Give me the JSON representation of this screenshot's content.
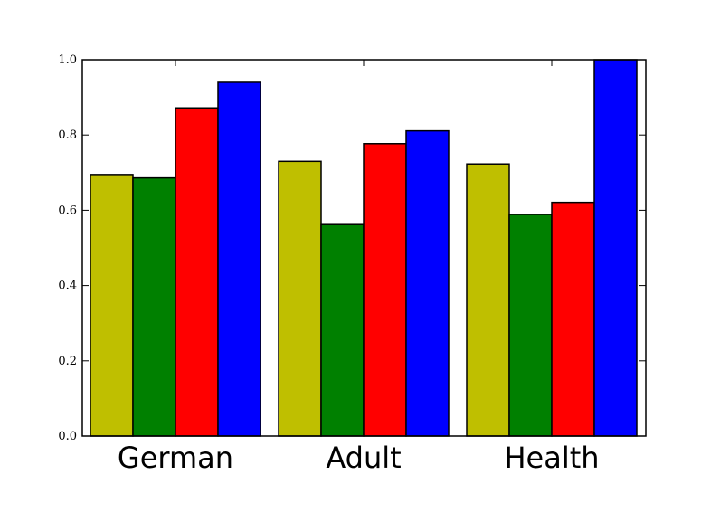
{
  "chart_data": {
    "type": "bar",
    "categories": [
      "German",
      "Adult",
      "Health"
    ],
    "series": [
      {
        "values": [
          0.695,
          0.73,
          0.723
        ],
        "color": "#bfbf00"
      },
      {
        "values": [
          0.686,
          0.562,
          0.589
        ],
        "color": "#008000"
      },
      {
        "values": [
          0.872,
          0.777,
          0.621
        ],
        "color": "#ff0000"
      },
      {
        "values": [
          0.94,
          0.811,
          1.0
        ],
        "color": "#0000ff"
      }
    ],
    "ylim": [
      0,
      1
    ],
    "yticks": [
      {
        "value": 0.0,
        "label": "0.0"
      },
      {
        "value": 0.2,
        "label": "0.2"
      },
      {
        "value": 0.4,
        "label": "0.4"
      },
      {
        "value": 0.6,
        "label": "0.6"
      },
      {
        "value": 0.8,
        "label": "0.8"
      },
      {
        "value": 1.0,
        "label": "1.0"
      }
    ],
    "title": "",
    "xlabel": "",
    "ylabel": "",
    "grid": false,
    "legend": "none"
  }
}
